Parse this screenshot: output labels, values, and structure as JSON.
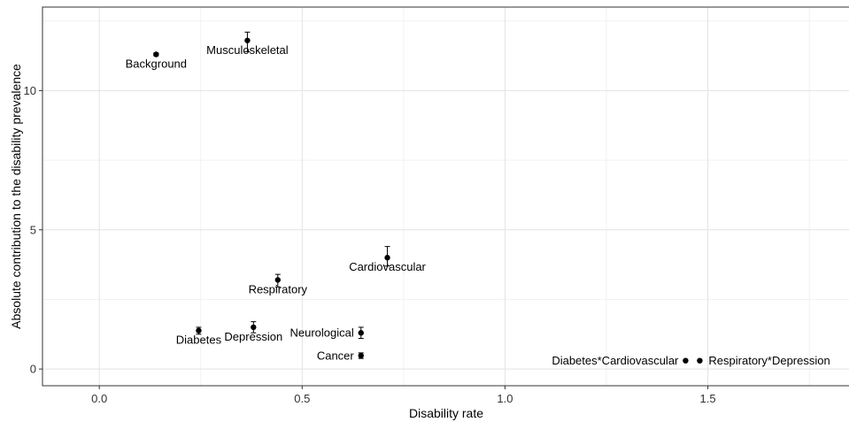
{
  "chart_data": {
    "type": "scatter",
    "xlabel": "Disability rate",
    "ylabel": "Absolute contribution to the disability prevalence",
    "xlim": [
      -0.14,
      1.85
    ],
    "ylim": [
      -0.6,
      13.0
    ],
    "x_ticks": [
      0.0,
      0.5,
      1.0,
      1.5
    ],
    "x_tick_labels": [
      "0.0",
      "0.5",
      "1.0",
      "1.5"
    ],
    "y_ticks": [
      0,
      5,
      10
    ],
    "y_tick_labels": [
      "0",
      "5",
      "10"
    ],
    "grid": true,
    "error_bars": true,
    "points": [
      {
        "label": "Background",
        "x": 0.14,
        "y": 11.3,
        "err_low": 11.25,
        "err_high": 11.35,
        "label_pos": "below"
      },
      {
        "label": "Musculoskeletal",
        "x": 0.365,
        "y": 11.8,
        "err_low": 11.4,
        "err_high": 12.1,
        "label_pos": "below"
      },
      {
        "label": "Cardiovascular",
        "x": 0.71,
        "y": 4.0,
        "err_low": 3.7,
        "err_high": 4.4,
        "label_pos": "below"
      },
      {
        "label": "Respiratory",
        "x": 0.44,
        "y": 3.2,
        "err_low": 2.95,
        "err_high": 3.4,
        "label_pos": "below"
      },
      {
        "label": "Diabetes",
        "x": 0.245,
        "y": 1.38,
        "err_low": 1.25,
        "err_high": 1.5,
        "label_pos": "below"
      },
      {
        "label": "Depression",
        "x": 0.38,
        "y": 1.5,
        "err_low": 1.3,
        "err_high": 1.7,
        "label_pos": "below"
      },
      {
        "label": "Neurological",
        "x": 0.645,
        "y": 1.3,
        "err_low": 1.1,
        "err_high": 1.5,
        "label_pos": "left"
      },
      {
        "label": "Cancer",
        "x": 0.645,
        "y": 0.48,
        "err_low": 0.38,
        "err_high": 0.58,
        "label_pos": "left"
      },
      {
        "label": "Diabetes*Cardiovascular",
        "x": 1.445,
        "y": 0.3,
        "err_low": 0.28,
        "err_high": 0.32,
        "label_pos": "left"
      },
      {
        "label": "Respiratory*Depression",
        "x": 1.48,
        "y": 0.3,
        "err_low": 0.28,
        "err_high": 0.32,
        "label_pos": "right"
      }
    ]
  }
}
